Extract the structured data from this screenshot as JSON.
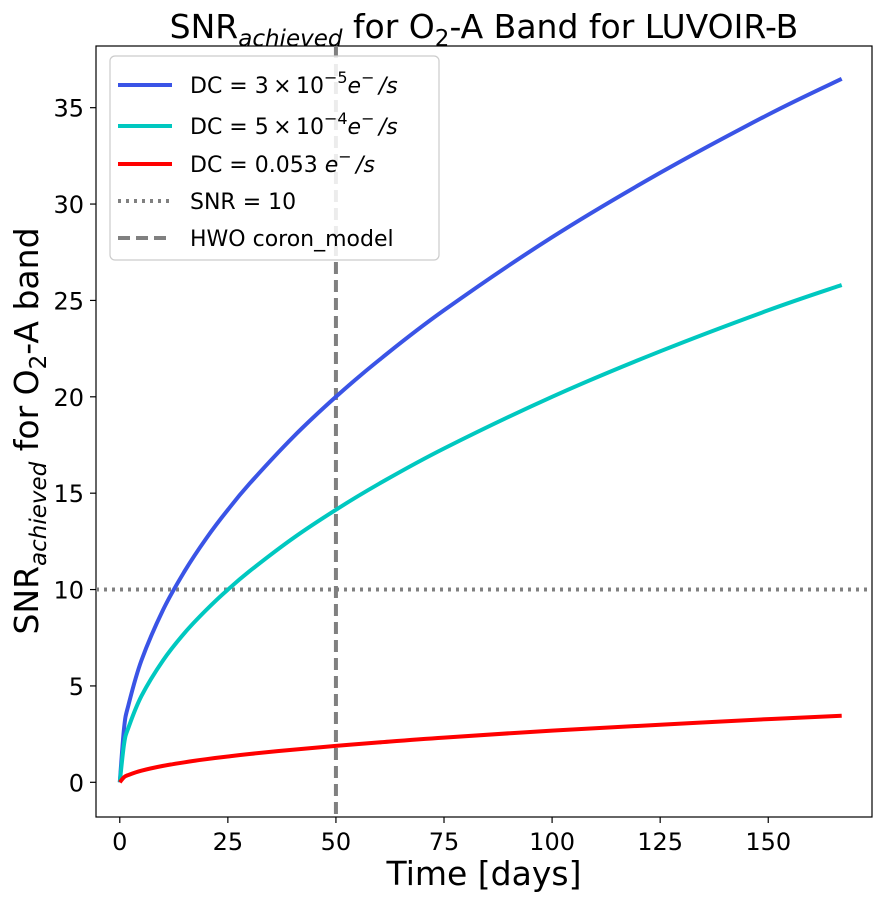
{
  "chart_data": {
    "type": "line",
    "title": {
      "prefix": "SNR",
      "prefix_sub": "achieved",
      "middle": " for O",
      "middle_sub": "2",
      "suffix": "-A Band for LUVOIR-B"
    },
    "xlabel": "Time [days]",
    "ylabel": {
      "prefix": "SNR",
      "prefix_sub": "achieved",
      "middle": " for O",
      "middle_sub": "2",
      "suffix": "-A band"
    },
    "xlim": [
      -5.5,
      174
    ],
    "ylim": [
      -1.8,
      38.2
    ],
    "xticks": [
      0,
      25,
      50,
      75,
      100,
      125,
      150
    ],
    "yticks": [
      0,
      5,
      10,
      15,
      20,
      25,
      30,
      35
    ],
    "grid": false,
    "legend_position": "top-left",
    "series": [
      {
        "name": "DC = 3 × 10^-5 e^- /s",
        "legend": {
          "a": "DC = 3",
          "b": "×",
          "c": "10",
          "sup": "−5",
          "unit": "e",
          "unit_sup": "−",
          "tail": "/s"
        },
        "color": "#3a54e6",
        "x": [
          0,
          1,
          2,
          5,
          10,
          15,
          20,
          25,
          30,
          40,
          50,
          60,
          75,
          100,
          125,
          150,
          167
        ],
        "y": [
          0,
          2.83,
          4.0,
          6.32,
          8.94,
          10.95,
          12.65,
          14.14,
          15.49,
          17.89,
          20.0,
          21.91,
          24.49,
          28.28,
          31.62,
          34.64,
          36.5
        ]
      },
      {
        "name": "DC = 5 × 10^-4 e^- /s",
        "legend": {
          "a": "DC = 5",
          "b": "×",
          "c": "10",
          "sup": "−4",
          "unit": "e",
          "unit_sup": "−",
          "tail": "/s"
        },
        "color": "#00c8c0",
        "x": [
          0,
          1,
          2,
          5,
          10,
          15,
          20,
          25,
          30,
          40,
          50,
          60,
          75,
          100,
          125,
          150,
          167
        ],
        "y": [
          0,
          2.0,
          2.83,
          4.47,
          6.32,
          7.75,
          8.94,
          10.0,
          10.95,
          12.65,
          14.14,
          15.49,
          17.32,
          20.0,
          22.36,
          24.49,
          25.8
        ]
      },
      {
        "name": "DC = 0.053 e^- /s",
        "legend": {
          "a": "DC = 0.053",
          "unit": "e",
          "unit_sup": "−",
          "tail": "/s"
        },
        "color": "#ff0000",
        "x": [
          0,
          1,
          2,
          5,
          10,
          15,
          20,
          25,
          30,
          40,
          50,
          60,
          75,
          100,
          125,
          150,
          167
        ],
        "y": [
          0,
          0.27,
          0.38,
          0.6,
          0.85,
          1.04,
          1.2,
          1.34,
          1.47,
          1.69,
          1.89,
          2.07,
          2.32,
          2.68,
          2.99,
          3.28,
          3.45
        ]
      }
    ],
    "reference_lines": [
      {
        "name": "SNR = 10",
        "orientation": "horizontal",
        "value": 10,
        "style": "dotted",
        "color": "#808080"
      },
      {
        "name": "HWO coron_model",
        "orientation": "vertical",
        "value": 50,
        "style": "dashed",
        "color": "#808080"
      }
    ]
  }
}
